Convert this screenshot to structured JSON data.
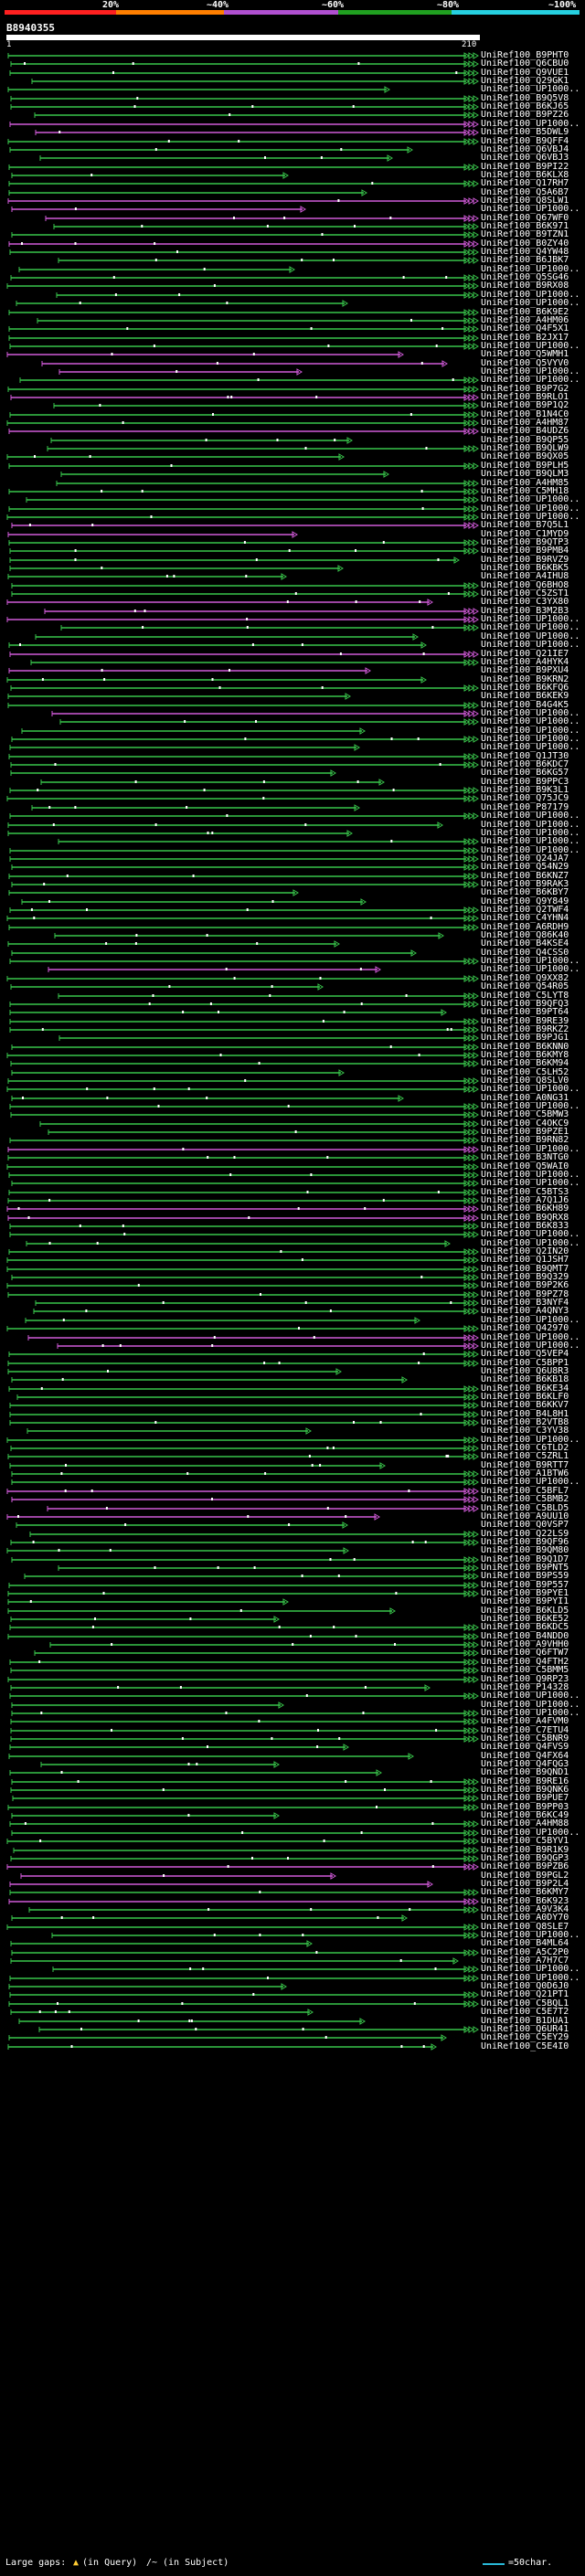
{
  "colors": {
    "identity_bands": [
      "#ff2020",
      "#ff7f00",
      "#b050d0",
      "#20a020",
      "#26d0e0"
    ],
    "line_green": "#39c54b",
    "line_magenta": "#d05ad8",
    "line_cyan": "#28b8d8"
  },
  "identity_scale": {
    "labels": [
      "20%",
      "~40%",
      "~60%",
      "~80%",
      "~100%"
    ]
  },
  "query": {
    "id": "B8940355",
    "start": "1",
    "end": "210"
  },
  "hits": [
    "UniRef100_B9PHT0",
    "UniRef100_Q6CBU0",
    "UniRef100_Q9VUE1",
    "UniRef100_Q29GK1",
    "UniRef100_UP1000..",
    "UniRef100_B9Q5V8",
    "UniRef100_B6KJ65",
    "UniRef100_B9PZ26",
    "UniRef100_UP1000..",
    "UniRef100_B5DWL9",
    "UniRef100_B9QFF4",
    "UniRef100_Q6VBJ4",
    "UniRef100_Q6VBJ3",
    "UniRef100_B9PI22",
    "UniRef100_B6KLX8",
    "UniRef100_Q17RH7",
    "UniRef100_Q5A6B7",
    "UniRef100_Q8SLW1",
    "UniRef100_UP1000..",
    "UniRef100_Q67WF0",
    "UniRef100_B6K971",
    "UniRef100_B9TZN1",
    "UniRef100_B0ZY40",
    "UniRef100_Q4YW48",
    "UniRef100_B6JBK7",
    "UniRef100_UP1000..",
    "UniRef100_Q5SG46",
    "UniRef100_B9RX08",
    "UniRef100_UP1000..",
    "UniRef100_UP1000..",
    "UniRef100_B6K9E2",
    "UniRef100_A4HM06",
    "UniRef100_Q4F5X1",
    "UniRef100_B2JX17",
    "UniRef100_UP1000..",
    "UniRef100_Q5WMH1",
    "UniRef100_Q5VYV0",
    "UniRef100_UP1000..",
    "UniRef100_UP1000..",
    "UniRef100_B9P7G2",
    "UniRef100_B9RLO1",
    "UniRef100_B9P1Q2",
    "UniRef100_B1N4C0",
    "UniRef100_A4HM87",
    "UniRef100_B4UDZ6",
    "UniRef100_B9QP55",
    "UniRef100_B9QLW9",
    "UniRef100_B9QX05",
    "UniRef100_B9PLH5",
    "UniRef100_B9QLM3",
    "UniRef100_A4HM85",
    "UniRef100_C5MH18",
    "UniRef100_UP1000..",
    "UniRef100_UP1000..",
    "UniRef100_UP1000..",
    "UniRef100_B7Q5L1",
    "UniRef100_C1MYD9",
    "UniRef100_B9QTP3",
    "UniRef100_B9PMB4",
    "UniRef100_B9RVZ9",
    "UniRef100_B6KBK5",
    "UniRef100_A4IHU8",
    "UniRef100_Q6BHO8",
    "UniRef100_C5ZST1",
    "UniRef100_C3YX80",
    "UniRef100_B3M2B3",
    "UniRef100_UP1000..",
    "UniRef100_UP1000..",
    "UniRef100_UP1000..",
    "UniRef100_UP1000..",
    "UniRef100_Q21IE7",
    "UniRef100_A4HYK4",
    "UniRef100_B9PXU4",
    "UniRef100_B9KRN2",
    "UniRef100_B6KFQ6",
    "UniRef100_B6KEK9",
    "UniRef100_B4G4K5",
    "UniRef100_UP1000..",
    "UniRef100_UP1000..",
    "UniRef100_UP1000..",
    "UniRef100_UP1000..",
    "UniRef100_UP1000..",
    "UniRef100_Q1JT30",
    "UniRef100_B6KDC7",
    "UniRef100_B6KG57",
    "UniRef100_B9PPC3",
    "UniRef100_B9K3L1",
    "UniRef100_Q75JC9",
    "UniRef100_P87179",
    "UniRef100_UP1000..",
    "UniRef100_UP1000..",
    "UniRef100_UP1000..",
    "UniRef100_UP1000..",
    "UniRef100_UP1000..",
    "UniRef100_Q24JA7",
    "UniRef100_Q54N29",
    "UniRef100_B6KNZ7",
    "UniRef100_B9RAK3",
    "UniRef100_B6KBY7",
    "UniRef100_Q9Y849",
    "UniRef100_Q2TWF4",
    "UniRef100_C4YHN4",
    "UniRef100_A6RDH9",
    "UniRef100_Q86K40",
    "UniRef100_B4KSE4",
    "UniRef100_Q4CSS0",
    "UniRef100_UP1000..",
    "UniRef100_UP1000..",
    "UniRef100_Q9XX82",
    "UniRef100_Q54R05",
    "UniRef100_C5LYT8",
    "UniRef100_B9QFQ3",
    "UniRef100_B9PT64",
    "UniRef100_B9RE39",
    "UniRef100_B9RKZ2",
    "UniRef100_B9PJG1",
    "UniRef100_B6KNN0",
    "UniRef100_B6KMY8",
    "UniRef100_B6KM94",
    "UniRef100_C5LH52",
    "UniRef100_Q8SLV0",
    "UniRef100_UP1000..",
    "UniRef100_A0NG31",
    "UniRef100_UP1000..",
    "UniRef100_C5BMW3",
    "UniRef100_C4OKC9",
    "UniRef100_B9PZE1",
    "UniRef100_B9RN82",
    "UniRef100_UP1000..",
    "UniRef100_B3NTG0",
    "UniRef100_Q5WAI0",
    "UniRef100_UP1000..",
    "UniRef100_UP1000..",
    "UniRef100_C5BTS3",
    "UniRef100_A7Q1J6",
    "UniRef100_B6KH89",
    "UniRef100_B9QRX8",
    "UniRef100_B6K833",
    "UniRef100_UP1000..",
    "UniRef100_UP1000..",
    "UniRef100_Q2IN20",
    "UniRef100_Q1JSH7",
    "UniRef100_B9QMT7",
    "UniRef100_B9Q329",
    "UniRef100_B9P2K6",
    "UniRef100_B9PZ78",
    "UniRef100_B3NYF4",
    "UniRef100_A4QNY3",
    "UniRef100_UP1000..",
    "UniRef100_Q42970",
    "UniRef100_UP1000..",
    "UniRef100_UP1000..",
    "UniRef100_Q5VEP4",
    "UniRef100_C5BPP1",
    "UniRef100_Q6U8R3",
    "UniRef100_B6KB18",
    "UniRef100_B6KE34",
    "UniRef100_B6KLF0",
    "UniRef100_B6KKV7",
    "UniRef100_B4L8H1",
    "UniRef100_B2VTB8",
    "UniRef100_C3YV38",
    "UniRef100_UP1000..",
    "UniRef100_C6TLD2",
    "UniRef100_C5ZRL1",
    "UniRef100_B9RTT7",
    "UniRef100_A1BTW6",
    "UniRef100_UP1000..",
    "UniRef100_C5BFL7",
    "UniRef100_C5BMB2",
    "UniRef100_C5BLD5",
    "UniRef100_A9UU10",
    "UniRef100_Q0VSP7",
    "UniRef100_Q22LS9",
    "UniRef100_B9QF96",
    "UniRef100_B9QM80",
    "UniRef100_B9Q1D7",
    "UniRef100_B9PNT5",
    "UniRef100_B9PS59",
    "UniRef100_B9P557",
    "UniRef100_B9PYE1",
    "UniRef100_B9PYI1",
    "UniRef100_B6KLD5",
    "UniRef100_B6KE52",
    "UniRef100_B6KDC5",
    "UniRef100_B4NDD0",
    "UniRef100_A9VHH0",
    "UniRef100_Q6FTW7",
    "UniRef100_Q4FTH2",
    "UniRef100_C5BMM5",
    "UniRef100_Q9RP23",
    "UniRef100_P14328",
    "UniRef100_UP1000..",
    "UniRef100_UP1000..",
    "UniRef100_UP1000..",
    "UniRef100_A4FVM0",
    "UniRef100_C7ETU4",
    "UniRef100_C5BNR9",
    "UniRef100_Q4FVS9",
    "UniRef100_Q4FX64",
    "UniRef100_Q4FQG3",
    "UniRef100_B9QND1",
    "UniRef100_B9RE16",
    "UniRef100_B9QNK6",
    "UniRef100_B9PUE7",
    "UniRef100_B9PP03",
    "UniRef100_B6KC49",
    "UniRef100_A4HM88",
    "UniRef100_UP1000..",
    "UniRef100_C5BYV1",
    "UniRef100_B9R1K9",
    "UniRef100_B9QGP3",
    "UniRef100_B9PZB6",
    "UniRef100_B9PGL2",
    "UniRef100_B9P2L4",
    "UniRef100_B6KMY7",
    "UniRef100_B6K923",
    "UniRef100_A9V3K4",
    "UniRef100_A0DY70",
    "UniRef100_Q8SLE7",
    "UniRef100_UP1000..",
    "UniRef100_B4ML64",
    "UniRef100_A5C2P0",
    "UniRef100_A7H7C7",
    "UniRef100_UP1000..",
    "UniRef100_UP1000..",
    "UniRef100_Q0D6J0",
    "UniRef100_Q21PT1",
    "UniRef100_C5BQL1",
    "UniRef100_C5E7T2",
    "UniRef100_B1DUA1",
    "UniRef100_Q6UR41",
    "UniRef100_C5EY29",
    "UniRef100_C5E4I0"
  ],
  "footer": {
    "large_gaps_label": "Large gaps:",
    "query_gap_label": "(in Query)",
    "subject_gap_label": "(in Subject)",
    "scale_label": "=50char."
  }
}
